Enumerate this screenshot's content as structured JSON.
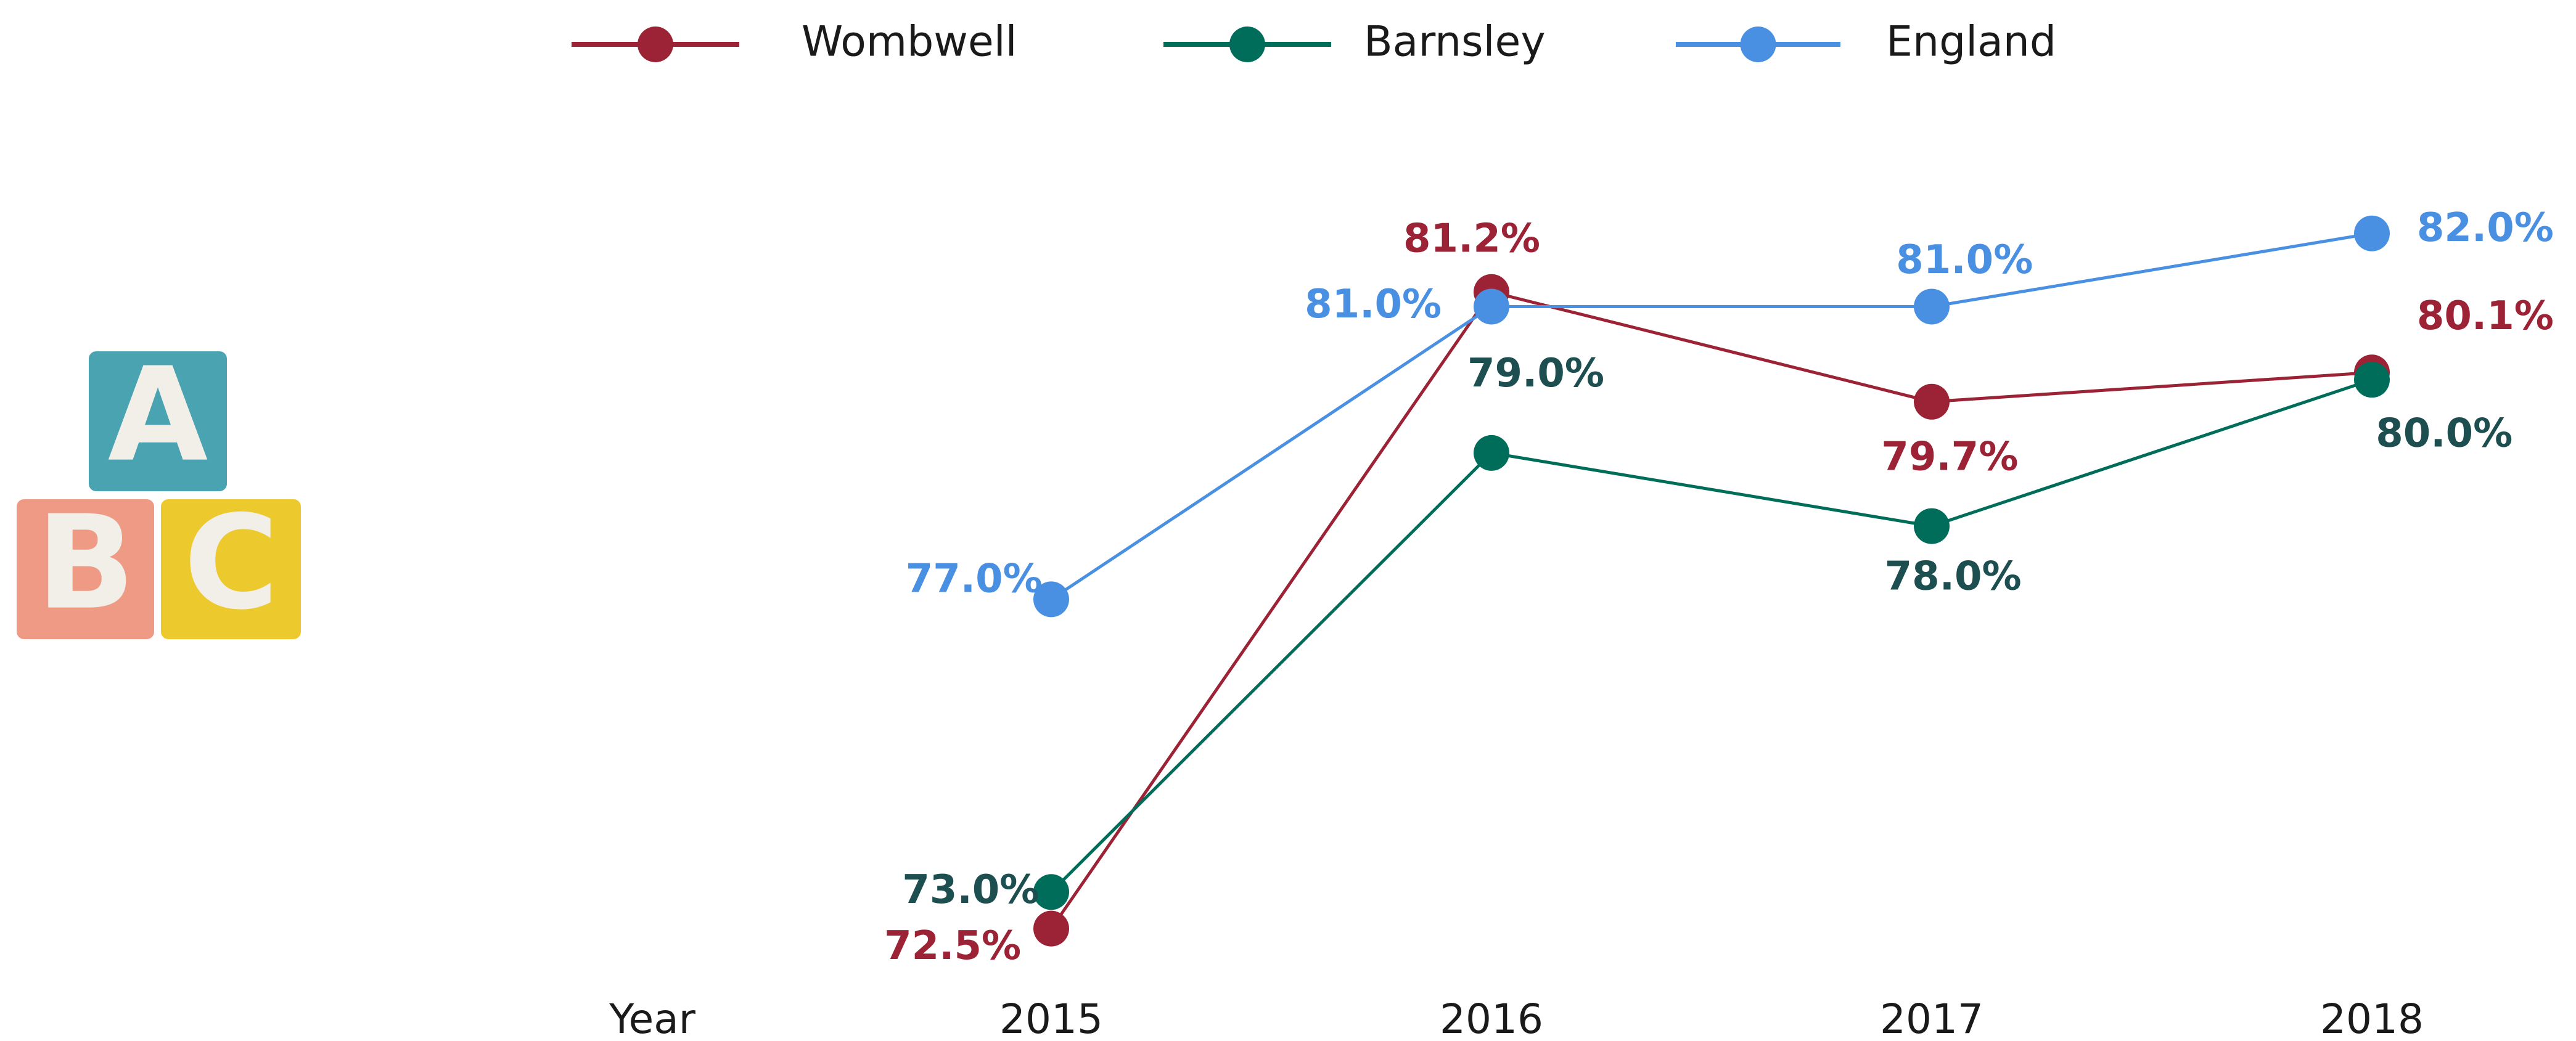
{
  "icon_letters": [
    "A",
    "B",
    "C"
  ],
  "chart_data": {
    "type": "line",
    "x_label": "Year",
    "categories": [
      "2015",
      "2016",
      "2017",
      "2018"
    ],
    "ylim": [
      72,
      83
    ],
    "series": [
      {
        "name": "Wombwell",
        "color": "#9b2335",
        "label_color": "#9b2335",
        "values": [
          72.5,
          81.2,
          79.7,
          80.1
        ],
        "value_labels": [
          "72.5%",
          "81.2%",
          "79.7%",
          "80.1%"
        ]
      },
      {
        "name": "Barnsley",
        "color": "#006d5b",
        "label_color": "#1d4f50",
        "values": [
          73.0,
          79.0,
          78.0,
          80.0
        ],
        "value_labels": [
          "73.0%",
          "79.0%",
          "78.0%",
          "80.0%"
        ]
      },
      {
        "name": "England",
        "color": "#4a90e2",
        "label_color": "#4a90e2",
        "values": [
          77.0,
          81.0,
          81.0,
          82.0
        ],
        "value_labels": [
          "77.0%",
          "81.0%",
          "81.0%",
          "82.0%"
        ]
      }
    ],
    "legend": "top"
  }
}
